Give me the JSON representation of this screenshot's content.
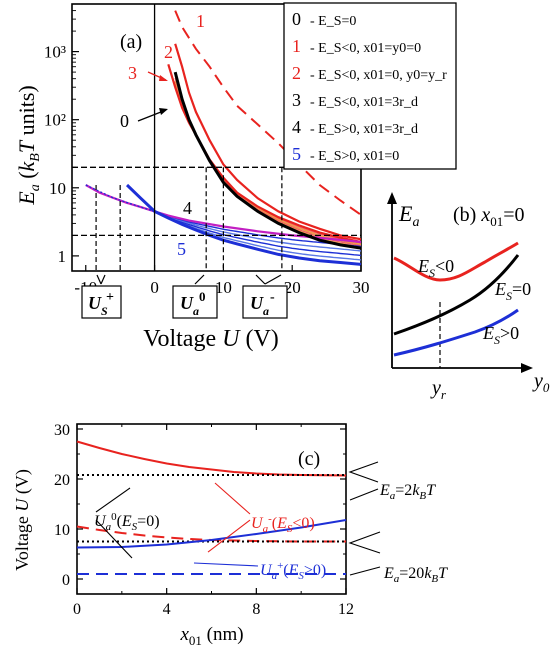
{
  "colors": {
    "black": "#000000",
    "red": "#e8231f",
    "blue": "#1d2fd6",
    "magenta": "#c21fc2",
    "orange": "#f0a040",
    "lightred": "#f26464",
    "lightblue": "#5a78e6"
  },
  "chart_data": [
    {
      "type": "line",
      "panel_label": "(a)",
      "xlabel": "Voltage U (V)",
      "ylabel": "E_a (k_BT units)",
      "xlim": [
        -12,
        30
      ],
      "ylim_log": [
        0.6,
        5000
      ],
      "scale_y": "log",
      "x_ticks": [
        "-10",
        "0",
        "10",
        "20",
        "30"
      ],
      "y_ticks": [
        "1",
        "10",
        "10²",
        "10³"
      ],
      "legend_items": [
        {
          "num": "0",
          "text": "- E_S=0"
        },
        {
          "num": "1",
          "text": "- E_S<0, x01=y0=0"
        },
        {
          "num": "2",
          "text": "- E_S<0, x01=0, y0=y_r"
        },
        {
          "num": "3",
          "text": "- E_S<0, x01=3r_d"
        },
        {
          "num": "4",
          "text": "- E_S>0, x01=3r_d"
        },
        {
          "num": "5",
          "text": "- E_S>0, x01=0"
        }
      ],
      "curve_labels": [
        "0",
        "1",
        "2",
        "3",
        "4",
        "5"
      ],
      "reference_lines_y": [
        20,
        2
      ],
      "marker_lines_x": [
        -8.5,
        -5,
        7.5,
        10,
        18.5
      ],
      "marker_boxes": [
        "U_S+",
        "U_a0",
        "U_a-"
      ],
      "series": [
        {
          "label": "1",
          "style": "dashed",
          "color": "red",
          "x": [
            3,
            4,
            6,
            8,
            10,
            12,
            15,
            18,
            21,
            24,
            27,
            30
          ],
          "y": [
            4000,
            2300,
            1100,
            600,
            300,
            160,
            85,
            45,
            22,
            11,
            6.5,
            4
          ]
        },
        {
          "label": "0",
          "style": "solid",
          "color": "black",
          "x": [
            3,
            4,
            5,
            6,
            8,
            10,
            12,
            15,
            18,
            21,
            24,
            27,
            30
          ],
          "y": [
            500,
            200,
            100,
            60,
            25,
            12,
            7.5,
            4.5,
            3.0,
            2.2,
            1.7,
            1.45,
            1.3
          ]
        },
        {
          "label": "2",
          "style": "solid",
          "color": "red",
          "x": [
            3,
            4,
            5,
            6,
            8,
            10,
            12,
            15,
            18,
            21,
            24,
            27,
            30
          ],
          "y": [
            1300,
            600,
            250,
            130,
            50,
            22,
            13,
            7,
            4.5,
            3.2,
            2.5,
            2.0,
            1.75
          ]
        },
        {
          "label": "3",
          "style": "solid",
          "color": "red",
          "x": [
            2,
            3,
            4,
            5,
            6,
            8,
            10,
            12,
            15,
            18,
            21,
            24,
            27,
            30
          ],
          "y": [
            650,
            300,
            150,
            90,
            60,
            26,
            14,
            8.5,
            5.3,
            3.7,
            2.8,
            2.2,
            1.85,
            1.6
          ]
        },
        {
          "label": "4",
          "style": "solid",
          "color": "magenta",
          "x": [
            -10,
            -8,
            -6,
            -4,
            -2,
            0,
            2,
            5,
            10,
            15,
            20,
            25,
            30
          ],
          "y": [
            11,
            8.5,
            7.1,
            6.0,
            5.2,
            4.5,
            3.9,
            3.3,
            2.7,
            2.3,
            2.0,
            1.8,
            1.6
          ]
        },
        {
          "label": "5",
          "style": "solid",
          "color": "blue",
          "x": [
            -4,
            -2,
            0,
            2,
            4,
            6,
            8,
            10,
            12,
            15,
            18,
            21,
            24,
            27,
            30
          ],
          "y": [
            11,
            7,
            4.5,
            3.6,
            2.9,
            2.4,
            2.0,
            1.7,
            1.5,
            1.25,
            1.05,
            0.93,
            0.85,
            0.8,
            0.75
          ]
        }
      ]
    },
    {
      "type": "line",
      "panel_label": "(b) x01=0",
      "xlabel": "y0",
      "ylabel": "E_a",
      "x_tick_label": "y_r",
      "curve_labels": [
        "E_S<0",
        "E_S=0",
        "E_S>0"
      ]
    },
    {
      "type": "line",
      "panel_label": "(c)",
      "xlabel": "x01 (nm)",
      "ylabel": "Voltage U (V)",
      "xlim": [
        0,
        12
      ],
      "ylim": [
        -3,
        31
      ],
      "x_ticks": [
        "0",
        "4",
        "8",
        "12"
      ],
      "y_ticks": [
        "0",
        "10",
        "20",
        "30"
      ],
      "annotations": [
        "E_a=2k_BT",
        "E_a=20k_BT",
        "U_a0(E_S=0)",
        "U_a-(E_S<0)",
        "U_a+(E_S>0)"
      ],
      "series": [
        {
          "name": "U_a- (E_a=2k_BT)",
          "style": "solid",
          "color": "red",
          "x": [
            0,
            1,
            2,
            3,
            4,
            5,
            6,
            7,
            8,
            9,
            10,
            11,
            12
          ],
          "y": [
            27.5,
            26.2,
            25.0,
            24.0,
            23.1,
            22.4,
            21.9,
            21.4,
            21.1,
            20.9,
            20.8,
            20.75,
            20.7
          ]
        },
        {
          "name": "U_a0 (E_a=2k_BT)",
          "style": "dotted",
          "color": "black",
          "x": [
            0,
            12
          ],
          "y": [
            20.8,
            20.8
          ]
        },
        {
          "name": "U_a- (E_a=20k_BT)",
          "style": "dashed",
          "color": "red",
          "x": [
            0,
            1,
            2,
            3,
            4,
            5,
            6,
            7,
            8,
            9,
            10,
            11,
            12
          ],
          "y": [
            10.5,
            9.8,
            9.2,
            8.7,
            8.3,
            8.0,
            7.8,
            7.7,
            7.6,
            7.55,
            7.5,
            7.5,
            7.5
          ]
        },
        {
          "name": "U_a0 (E_a=20k_BT)",
          "style": "dotted",
          "color": "black",
          "x": [
            0,
            12
          ],
          "y": [
            7.5,
            7.5
          ]
        },
        {
          "name": "U_a+ (E_a=2k_BT)",
          "style": "solid",
          "color": "blue",
          "x": [
            0,
            2,
            4,
            6,
            8,
            10,
            12
          ],
          "y": [
            6.3,
            6.4,
            6.9,
            7.8,
            9.0,
            10.3,
            11.8
          ]
        },
        {
          "name": "U_a+ (E_a=20k_BT)",
          "style": "dashed",
          "color": "blue",
          "x": [
            0,
            12
          ],
          "y": [
            1.0,
            1.0
          ]
        }
      ]
    }
  ]
}
